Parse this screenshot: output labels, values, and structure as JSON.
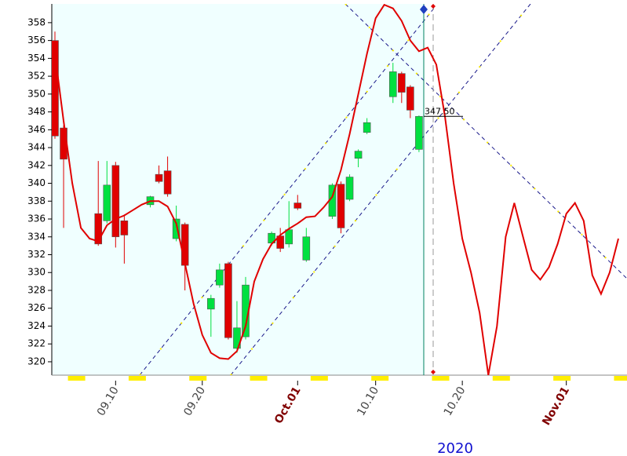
{
  "chart_data": {
    "type": "candlestick",
    "year_label": "2020",
    "xlim": [
      "2020-09-03",
      "2020-11-08"
    ],
    "ylim": [
      318.5,
      360.1
    ],
    "yticks": [
      320,
      322,
      324,
      326,
      328,
      330,
      332,
      334,
      336,
      338,
      340,
      342,
      344,
      346,
      348,
      350,
      352,
      354,
      356,
      358
    ],
    "xticks": [
      {
        "value": "2020-09-10",
        "label": "09.10"
      },
      {
        "value": "2020-09-20",
        "label": "09.20"
      },
      {
        "value": "2020-10-01",
        "label": "Oct.01"
      },
      {
        "value": "2020-10-10",
        "label": "10.10"
      },
      {
        "value": "2020-10-20",
        "label": "10.20"
      },
      {
        "value": "2020-11-01",
        "label": "Nov.01"
      }
    ],
    "x": [
      "2020-09-03",
      "2020-09-04",
      "2020-09-08",
      "2020-09-09",
      "2020-09-10",
      "2020-09-11",
      "2020-09-14",
      "2020-09-15",
      "2020-09-16",
      "2020-09-17",
      "2020-09-18",
      "2020-09-21",
      "2020-09-22",
      "2020-09-23",
      "2020-09-24",
      "2020-09-25",
      "2020-09-28",
      "2020-09-29",
      "2020-09-30",
      "2020-10-01",
      "2020-10-02",
      "2020-10-05",
      "2020-10-06",
      "2020-10-07",
      "2020-10-08",
      "2020-10-09",
      "2020-10-12",
      "2020-10-13",
      "2020-10-14",
      "2020-10-15"
    ],
    "open": [
      356,
      346.2,
      336.6,
      335.8,
      342,
      335.8,
      337.6,
      341,
      341.4,
      333.8,
      335.4,
      325.9,
      328.6,
      331,
      321.5,
      322.8,
      333.3,
      334.1,
      333.2,
      337.8,
      331.4,
      336.3,
      339.9,
      338.2,
      342.8,
      345.7,
      349.7,
      352.3,
      350.8,
      343.8
    ],
    "high": [
      357,
      346.5,
      342.5,
      342.5,
      342.4,
      336.5,
      338.6,
      342,
      343,
      337.5,
      335.6,
      327.5,
      331,
      331.2,
      326.8,
      329.5,
      334.6,
      335,
      338,
      338.7,
      335,
      340,
      340.2,
      341,
      343.8,
      347.3,
      353.5,
      352.5,
      351,
      347.6
    ],
    "low": [
      345,
      335,
      333,
      335.5,
      332.8,
      331,
      337.3,
      340,
      338.5,
      333.5,
      328,
      322.8,
      328.3,
      322.5,
      321,
      322.5,
      333,
      332.3,
      332.8,
      337,
      331.2,
      336,
      334.4,
      338,
      341.8,
      345.5,
      349,
      349,
      347.3,
      343.5
    ],
    "close": [
      345.3,
      342.7,
      333.2,
      339.8,
      334,
      334.2,
      338.5,
      340.2,
      338.8,
      336,
      330.8,
      327.1,
      330.3,
      322.7,
      323.8,
      328.6,
      334.4,
      332.7,
      334.8,
      337.2,
      334,
      339.8,
      335,
      340.7,
      343.6,
      346.8,
      352.5,
      350.2,
      348.2,
      347.5
    ],
    "up_color": "#00e040",
    "down_color": "#e00000",
    "line": {
      "color": "#e00000",
      "x": [
        "2020-09-03",
        "2020-09-04",
        "2020-09-05",
        "2020-09-06",
        "2020-09-07",
        "2020-09-08",
        "2020-09-09",
        "2020-09-10",
        "2020-09-11",
        "2020-09-12",
        "2020-09-13",
        "2020-09-14",
        "2020-09-15",
        "2020-09-16",
        "2020-09-17",
        "2020-09-18",
        "2020-09-19",
        "2020-09-20",
        "2020-09-21",
        "2020-09-22",
        "2020-09-23",
        "2020-09-24",
        "2020-09-25",
        "2020-09-26",
        "2020-09-27",
        "2020-09-28",
        "2020-09-29",
        "2020-09-30",
        "2020-10-01",
        "2020-10-02",
        "2020-10-03",
        "2020-10-04",
        "2020-10-05",
        "2020-10-06",
        "2020-10-07",
        "2020-10-08",
        "2020-10-09",
        "2020-10-10",
        "2020-10-11",
        "2020-10-12",
        "2020-10-13",
        "2020-10-14",
        "2020-10-15",
        "2020-10-16",
        "2020-10-17",
        "2020-10-18",
        "2020-10-19",
        "2020-10-20",
        "2020-10-21",
        "2020-10-22",
        "2020-10-23",
        "2020-10-24",
        "2020-10-25",
        "2020-10-26",
        "2020-10-27",
        "2020-10-28",
        "2020-10-29",
        "2020-10-30",
        "2020-10-31",
        "2020-11-01",
        "2020-11-02",
        "2020-11-03",
        "2020-11-04",
        "2020-11-05",
        "2020-11-06",
        "2020-11-07"
      ],
      "values": [
        354.5,
        347,
        340,
        335,
        333.8,
        333.5,
        335.3,
        336,
        336.4,
        337,
        337.6,
        338,
        338,
        337.4,
        335.5,
        331,
        326.5,
        323,
        321,
        320.4,
        320.3,
        321.2,
        324,
        329,
        331.5,
        333.2,
        334.2,
        334.9,
        335.5,
        336.2,
        336.3,
        337.3,
        338.5,
        341.5,
        345.5,
        350,
        354.5,
        358.5,
        360,
        359.6,
        358.2,
        356,
        354.8,
        355.2,
        353.3,
        347.5,
        340,
        333.8,
        330,
        325.5,
        318.5,
        324,
        334,
        337.8,
        334,
        330.3,
        329.2,
        330.6,
        333.2,
        336.6,
        337.8,
        335.8,
        329.7,
        327.6,
        330,
        333.8
      ]
    },
    "price_marker": {
      "value": 347.5,
      "label": "347.50"
    }
  }
}
